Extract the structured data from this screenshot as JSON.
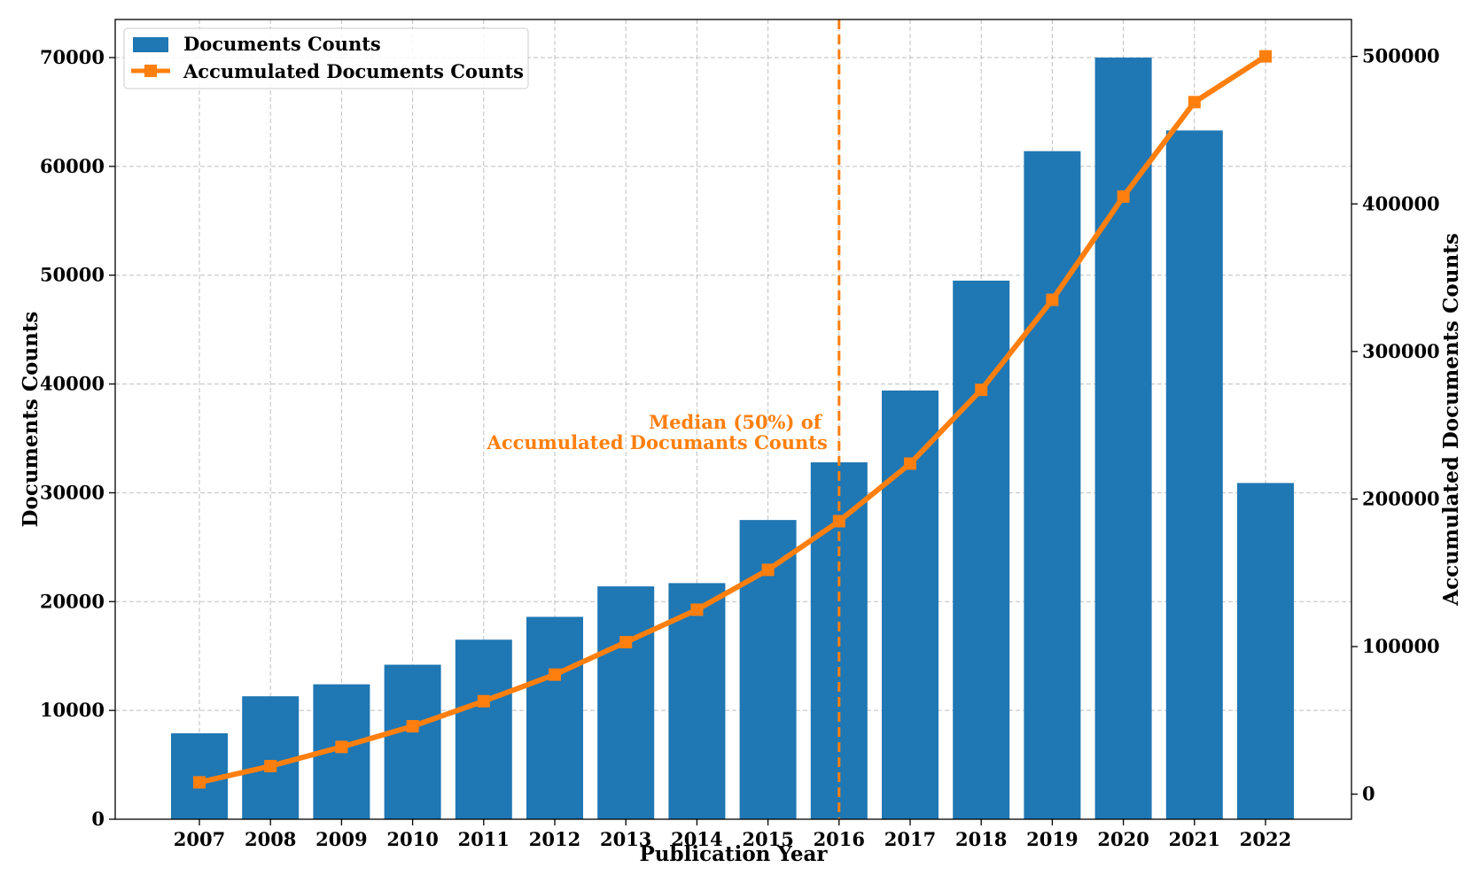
{
  "chart_data": {
    "type": "bar",
    "xlabel": "Publication Year",
    "ylabel": "Documents Counts",
    "y2label": "Accumulated Documents Counts",
    "categories": [
      "2007",
      "2008",
      "2009",
      "2010",
      "2011",
      "2012",
      "2013",
      "2014",
      "2015",
      "2016",
      "2017",
      "2018",
      "2019",
      "2020",
      "2021",
      "2022"
    ],
    "series": [
      {
        "name": "Documents Counts",
        "kind": "bar",
        "axis": "left",
        "color": "#1f77b4",
        "values": [
          7900,
          11300,
          12400,
          14200,
          16500,
          18600,
          21400,
          21700,
          27500,
          32800,
          39400,
          49500,
          61400,
          70000,
          63300,
          30900
        ]
      },
      {
        "name": "Accumulated Documents Counts",
        "kind": "line",
        "axis": "right",
        "color": "#ff7f0e",
        "marker": "square",
        "values": [
          8000,
          19000,
          32000,
          46000,
          63000,
          81000,
          103000,
          125000,
          152000,
          185000,
          224000,
          274000,
          335000,
          405000,
          469000,
          500000
        ]
      }
    ],
    "ylim": [
      0,
      73500
    ],
    "y2lim": [
      -17000,
      525000
    ],
    "yticks": [
      0,
      10000,
      20000,
      30000,
      40000,
      50000,
      60000,
      70000
    ],
    "y2ticks": [
      0,
      100000,
      200000,
      300000,
      400000,
      500000
    ],
    "grid": true,
    "legend_position": "top-left",
    "annotation": {
      "at_category": "2016",
      "line_style": "dashed",
      "color": "#ff7f0e",
      "lines": [
        "Median (50%) of",
        "Accumulated Documants Counts"
      ]
    }
  }
}
